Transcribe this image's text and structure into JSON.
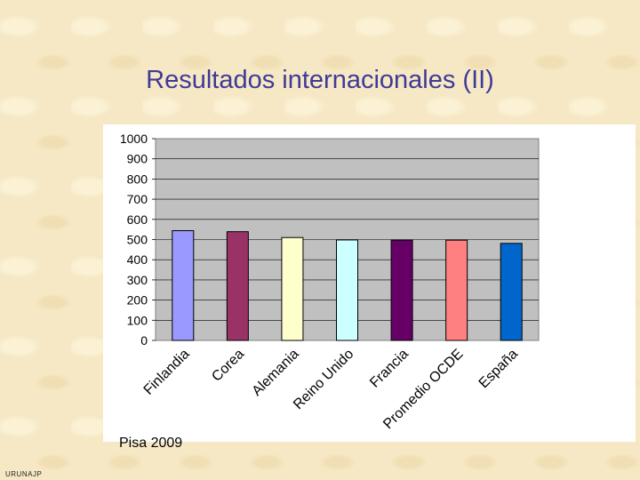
{
  "slide": {
    "title": "Resultados internacionales (II)",
    "caption": "Pisa 2009",
    "footer": "URUNAJP"
  },
  "chart_data": {
    "type": "bar",
    "categories": [
      "Finlandia",
      "Corea",
      "Alemania",
      "Reino Unido",
      "Francia",
      "Promedio OCDE",
      "España"
    ],
    "values": [
      544,
      539,
      510,
      498,
      497,
      497,
      481
    ],
    "colors": [
      "#9999ff",
      "#993366",
      "#ffffcc",
      "#ccffff",
      "#660066",
      "#ff8080",
      "#0066cc"
    ],
    "ylim": [
      0,
      1000
    ],
    "yticks": [
      0,
      100,
      200,
      300,
      400,
      500,
      600,
      700,
      800,
      900,
      1000
    ],
    "grid": true,
    "plot_background": "#c0c0c0",
    "legend": "none"
  }
}
